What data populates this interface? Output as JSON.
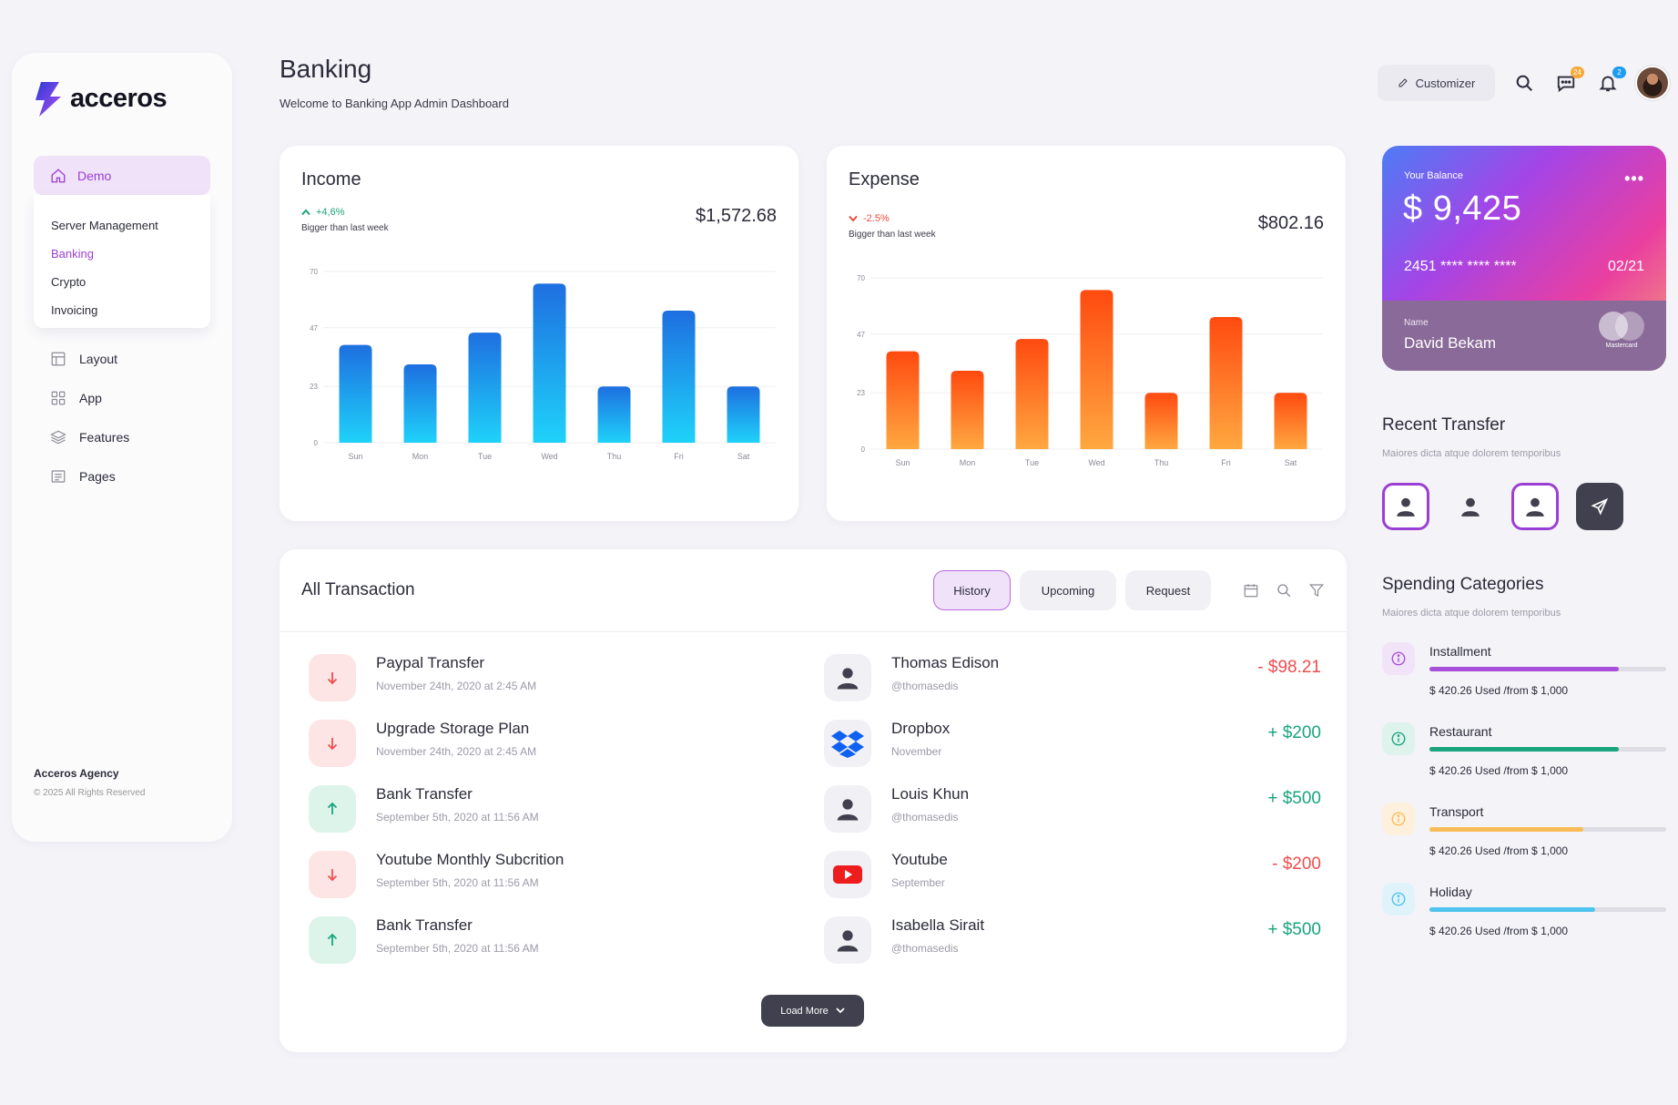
{
  "brand": {
    "name": "acceros"
  },
  "sidebar": {
    "demo_label": "Demo",
    "submenu": [
      "Server Management",
      "Banking",
      "Crypto",
      "Invoicing"
    ],
    "items": [
      {
        "label": "Layout",
        "icon": "layout-icon"
      },
      {
        "label": "App",
        "icon": "apps-grid-icon"
      },
      {
        "label": "Features",
        "icon": "layers-icon"
      },
      {
        "label": "Pages",
        "icon": "pages-icon"
      }
    ],
    "footer_title": "Acceros Agency",
    "footer_copy": "© 2025 All Rights Reserved"
  },
  "header": {
    "title": "Banking",
    "subtitle": "Welcome to Banking App Admin Dashboard",
    "customizer_label": "Customizer",
    "messages_badge": "24",
    "notifications_badge": "2"
  },
  "income": {
    "title": "Income",
    "change": "+4,6%",
    "sub": "Bigger than last week",
    "amount": "$1,572.68"
  },
  "expense": {
    "title": "Expense",
    "change": "-2.5%",
    "sub": "Bigger than last week",
    "amount": "$802.16"
  },
  "chart_data": [
    {
      "type": "bar",
      "categories": [
        "Sun",
        "Mon",
        "Tue",
        "Wed",
        "Thu",
        "Fri",
        "Sat"
      ],
      "values": [
        40,
        32,
        45,
        65,
        23,
        54,
        23
      ],
      "yticks": [
        0,
        23,
        47,
        70
      ],
      "ylim": [
        0,
        70
      ],
      "grid": true,
      "colors": [
        "#1e6fe0",
        "#1fd2fa"
      ]
    },
    {
      "type": "bar",
      "categories": [
        "Sun",
        "Mon",
        "Tue",
        "Wed",
        "Thu",
        "Fri",
        "Sat"
      ],
      "values": [
        40,
        32,
        45,
        65,
        23,
        54,
        23
      ],
      "yticks": [
        0,
        23,
        47,
        70
      ],
      "ylim": [
        0,
        70
      ],
      "grid": true,
      "colors": [
        "#ff4a10",
        "#ffa840"
      ]
    }
  ],
  "balance_card": {
    "label": "Your Balance",
    "amount": "$ 9,425",
    "number": "2451 **** **** ****",
    "expiry": "02/21",
    "name_label": "Name",
    "name": "David Bekam",
    "network": "Mastercard"
  },
  "recent_transfer": {
    "title": "Recent Transfer",
    "sub": "Maiores dicta atque dolorem temporibus"
  },
  "spending": {
    "title": "Spending Categories",
    "sub": "Maiores dicta atque dolorem temporibus",
    "items": [
      {
        "name": "Installment",
        "used": "$ 420.26 Used /from $ 1,000",
        "progress": 0.8,
        "color": "#a64fd8",
        "bg": "#f1e4f8"
      },
      {
        "name": "Restaurant",
        "used": "$ 420.26 Used /from $ 1,000",
        "progress": 0.8,
        "color": "#19a47e",
        "bg": "#def3ec"
      },
      {
        "name": "Transport",
        "used": "$ 420.26 Used /from $ 1,000",
        "progress": 0.65,
        "color": "#fbbc58",
        "bg": "#fdf0dc"
      },
      {
        "name": "Holiday",
        "used": "$ 420.26 Used /from $ 1,000",
        "progress": 0.7,
        "color": "#4dc3ec",
        "bg": "#e0f3fb"
      }
    ]
  },
  "transactions": {
    "title": "All Transaction",
    "tabs": [
      "History",
      "Upcoming",
      "Request"
    ],
    "load_more": "Load More",
    "left": [
      {
        "name": "Paypal Transfer",
        "date": "November 24th, 2020 at 2:45 AM",
        "dir": "down"
      },
      {
        "name": "Upgrade Storage Plan",
        "date": "November 24th, 2020 at 2:45 AM",
        "dir": "down"
      },
      {
        "name": "Bank Transfer",
        "date": "September 5th, 2020 at 11:56 AM",
        "dir": "up"
      },
      {
        "name": "Youtube Monthly Subcrition",
        "date": "September 5th, 2020 at 11:56 AM",
        "dir": "down"
      },
      {
        "name": "Bank Transfer",
        "date": "September 5th, 2020 at 11:56 AM",
        "dir": "up"
      }
    ],
    "right": [
      {
        "name": "Thomas Edison",
        "handle": "@thomasedis",
        "amount": "- $98.21",
        "kind": "person",
        "positive": false
      },
      {
        "name": "Dropbox",
        "handle": "November",
        "amount": "+ $200",
        "kind": "dropbox",
        "positive": true
      },
      {
        "name": "Louis Khun",
        "handle": "@thomasedis",
        "amount": "+ $500",
        "kind": "person",
        "positive": true
      },
      {
        "name": "Youtube",
        "handle": "September",
        "amount": "- $200",
        "kind": "youtube",
        "positive": false
      },
      {
        "name": "Isabella Sirait",
        "handle": "@thomasedis",
        "amount": "+ $500",
        "kind": "person",
        "positive": true
      }
    ]
  }
}
